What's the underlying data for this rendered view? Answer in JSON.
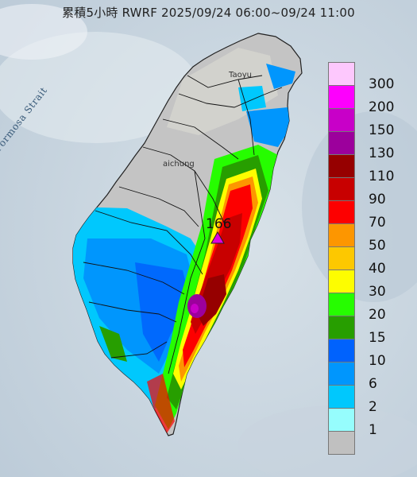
{
  "title": "累積5小時 RWRF 2025/09/24 06:00~09/24 11:00",
  "map_labels": {
    "strait": "Formosa Strait",
    "city_north": "Taoyu",
    "city_central": "aichung"
  },
  "max_marker": {
    "value": "166",
    "color": "#e000e0"
  },
  "legend": [
    {
      "label": "300",
      "color": "#fdc8fd"
    },
    {
      "label": "200",
      "color": "#fd00fd"
    },
    {
      "label": "150",
      "color": "#c800c8"
    },
    {
      "label": "130",
      "color": "#9c009c"
    },
    {
      "label": "110",
      "color": "#960000"
    },
    {
      "label": "90",
      "color": "#c80000"
    },
    {
      "label": "70",
      "color": "#fd0000"
    },
    {
      "label": "50",
      "color": "#fd9600"
    },
    {
      "label": "40",
      "color": "#fdc800"
    },
    {
      "label": "30",
      "color": "#fdfd00"
    },
    {
      "label": "20",
      "color": "#26fd00"
    },
    {
      "label": "15",
      "color": "#279e00"
    },
    {
      "label": "10",
      "color": "#0062fd"
    },
    {
      "label": "6",
      "color": "#0096fd"
    },
    {
      "label": "2",
      "color": "#00c8fd"
    },
    {
      "label": "1",
      "color": "#96fdfd"
    },
    {
      "label": "",
      "color": "#c0c0c0"
    }
  ]
}
